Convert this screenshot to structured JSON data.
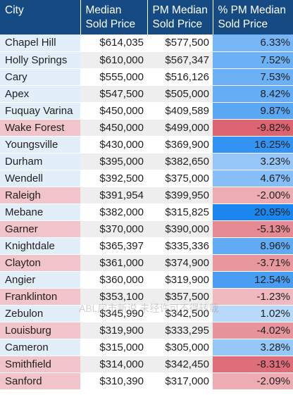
{
  "chart_data": {
    "type": "table",
    "columns": [
      "City",
      "Median Sold Price",
      "PM Median Sold Price",
      "% PM Median Sold Price"
    ],
    "rows": [
      {
        "city": "Chapel Hill",
        "median": "$614,035",
        "pm_median": "$577,500",
        "pct": "6.33%",
        "pct_value": 6.33
      },
      {
        "city": "Holly Springs",
        "median": "$610,000",
        "pm_median": "$567,347",
        "pct": "7.52%",
        "pct_value": 7.52
      },
      {
        "city": "Cary",
        "median": "$555,000",
        "pm_median": "$516,126",
        "pct": "7.53%",
        "pct_value": 7.53
      },
      {
        "city": "Apex",
        "median": "$547,500",
        "pm_median": "$505,000",
        "pct": "8.42%",
        "pct_value": 8.42
      },
      {
        "city": "Fuquay Varina",
        "median": "$450,000",
        "pm_median": "$409,589",
        "pct": "9.87%",
        "pct_value": 9.87
      },
      {
        "city": "Wake Forest",
        "median": "$450,000",
        "pm_median": "$499,000",
        "pct": "-9.82%",
        "pct_value": -9.82
      },
      {
        "city": "Youngsville",
        "median": "$430,000",
        "pm_median": "$369,900",
        "pct": "16.25%",
        "pct_value": 16.25
      },
      {
        "city": "Durham",
        "median": "$395,000",
        "pm_median": "$382,650",
        "pct": "3.23%",
        "pct_value": 3.23
      },
      {
        "city": "Wendell",
        "median": "$392,500",
        "pm_median": "$375,000",
        "pct": "4.67%",
        "pct_value": 4.67
      },
      {
        "city": "Raleigh",
        "median": "$391,954",
        "pm_median": "$399,950",
        "pct": "-2.00%",
        "pct_value": -2.0
      },
      {
        "city": "Mebane",
        "median": "$382,000",
        "pm_median": "$315,825",
        "pct": "20.95%",
        "pct_value": 20.95
      },
      {
        "city": "Garner",
        "median": "$370,000",
        "pm_median": "$390,000",
        "pct": "-5.13%",
        "pct_value": -5.13
      },
      {
        "city": "Knightdale",
        "median": "$365,397",
        "pm_median": "$335,336",
        "pct": "8.96%",
        "pct_value": 8.96
      },
      {
        "city": "Clayton",
        "median": "$361,000",
        "pm_median": "$374,900",
        "pct": "-3.71%",
        "pct_value": -3.71
      },
      {
        "city": "Angier",
        "median": "$360,000",
        "pm_median": "$319,900",
        "pct": "12.54%",
        "pct_value": 12.54
      },
      {
        "city": "Franklinton",
        "median": "$353,100",
        "pm_median": "$357,500",
        "pct": "-1.23%",
        "pct_value": -1.23
      },
      {
        "city": "Zebulon",
        "median": "$345,990",
        "pm_median": "$342,500",
        "pct": "1.02%",
        "pct_value": 1.02
      },
      {
        "city": "Louisburg",
        "median": "$319,900",
        "pm_median": "$333,295",
        "pct": "-4.02%",
        "pct_value": -4.02
      },
      {
        "city": "Cameron",
        "median": "$315,000",
        "pm_median": "$305,000",
        "pct": "3.28%",
        "pct_value": 3.28
      },
      {
        "city": "Smithfield",
        "median": "$314,000",
        "pm_median": "$342,450",
        "pct": "-8.31%",
        "pct_value": -8.31
      },
      {
        "city": "Sanford",
        "median": "$310,390",
        "pm_median": "$317,000",
        "pct": "-2.09%",
        "pct_value": -2.09
      }
    ]
  },
  "colors": {
    "header_bg": "#164a82",
    "header_text": "#ffffff",
    "positive_strong": "#1a86f0",
    "positive_light": "#e6f1fd",
    "negative_strong": "#dc6470",
    "negative_light": "#fbe8ea",
    "city_positive_bg": "#e2eefa",
    "city_negative_bg": "#f1c4c9",
    "price_bg": "#ffffff",
    "price_bg_alt": "#eeeeee"
  },
  "watermark": "ABL房市新说 未经许可不得转载"
}
